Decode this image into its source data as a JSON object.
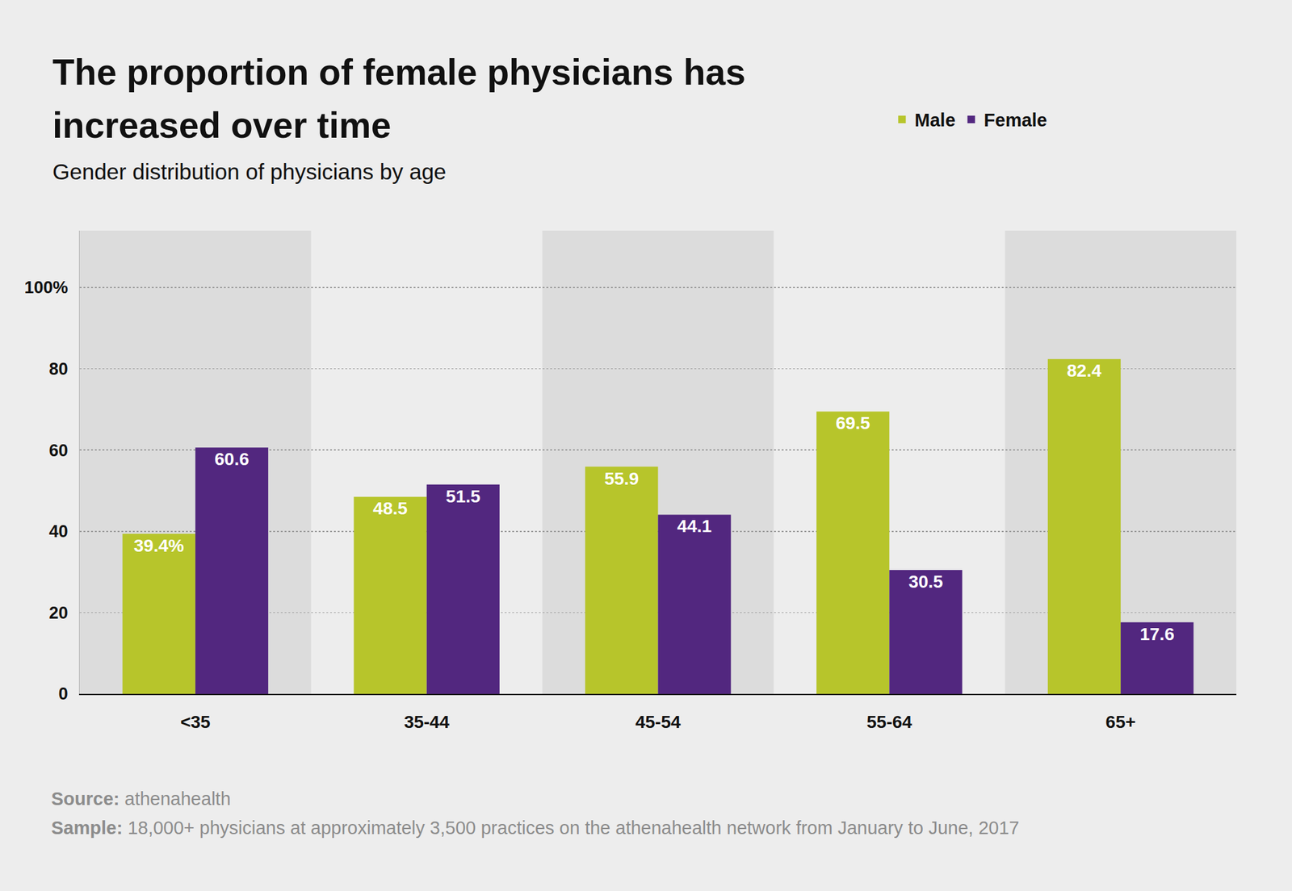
{
  "chart_data": {
    "type": "bar",
    "title": "The proportion of female physicians has increased over time",
    "subtitle": "Gender distribution of physicians by age",
    "categories": [
      "<35",
      "35-44",
      "45-54",
      "55-64",
      "65+"
    ],
    "series": [
      {
        "name": "Male",
        "color": "#b7c52b",
        "values": [
          39.4,
          48.5,
          55.9,
          69.5,
          82.4
        ],
        "value_labels": [
          "39.4%",
          "48.5",
          "55.9",
          "69.5",
          "82.4"
        ]
      },
      {
        "name": "Female",
        "color": "#52277f",
        "values": [
          60.6,
          51.5,
          44.1,
          30.5,
          17.6
        ]
      }
    ],
    "ylim": [
      0,
      114
    ],
    "yticks": [
      0,
      20,
      40,
      60,
      80,
      {
        "value": 100,
        "label": "100%"
      }
    ],
    "grid": true,
    "legend": "top right",
    "data_labels": true,
    "notes": [
      {
        "label": "Source:",
        "text": "athenahealth"
      },
      {
        "label": "Sample:",
        "text": "18,000+ physicians at approximately 3,500 practices on the athenahealth network from January to June, 2017"
      }
    ]
  }
}
